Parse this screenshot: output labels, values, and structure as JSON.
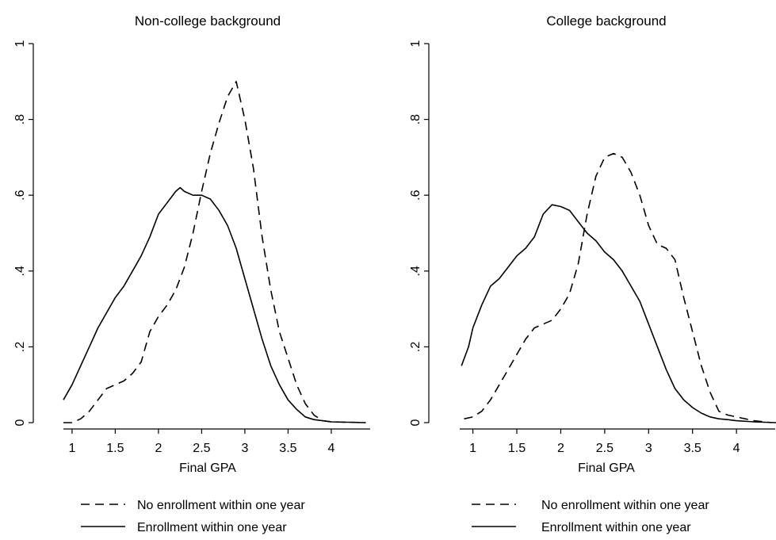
{
  "chart_data": [
    {
      "type": "line",
      "title": "Non-college background",
      "xlabel": "Final GPA",
      "ylabel": "",
      "xlim": [
        0.9,
        4.45
      ],
      "ylim": [
        0,
        1
      ],
      "xticks": [
        "1",
        "1.5",
        "2",
        "2.5",
        "3",
        "3.5",
        "4"
      ],
      "yticks": [
        "0",
        ".2",
        ".4",
        ".6",
        ".8",
        "1"
      ],
      "grid": false,
      "legend": "bottom",
      "series": [
        {
          "name": "No enrollment within one year",
          "style": "dashed",
          "x": [
            0.9,
            1.0,
            1.1,
            1.2,
            1.3,
            1.4,
            1.5,
            1.6,
            1.7,
            1.8,
            1.9,
            2.0,
            2.1,
            2.2,
            2.3,
            2.4,
            2.5,
            2.6,
            2.7,
            2.8,
            2.9,
            3.0,
            3.1,
            3.2,
            3.3,
            3.4,
            3.5,
            3.6,
            3.7,
            3.8,
            3.9,
            4.0,
            4.2,
            4.4
          ],
          "y": [
            0.0,
            0.0,
            0.01,
            0.03,
            0.06,
            0.09,
            0.1,
            0.11,
            0.13,
            0.16,
            0.24,
            0.28,
            0.31,
            0.35,
            0.41,
            0.5,
            0.61,
            0.71,
            0.79,
            0.86,
            0.9,
            0.8,
            0.67,
            0.49,
            0.35,
            0.24,
            0.17,
            0.1,
            0.05,
            0.02,
            0.005,
            0.002,
            0.001,
            0.0
          ]
        },
        {
          "name": "Enrollment within one year",
          "style": "solid",
          "x": [
            0.9,
            1.0,
            1.1,
            1.2,
            1.3,
            1.4,
            1.5,
            1.6,
            1.7,
            1.8,
            1.9,
            2.0,
            2.1,
            2.2,
            2.25,
            2.3,
            2.4,
            2.5,
            2.6,
            2.7,
            2.8,
            2.9,
            3.0,
            3.1,
            3.2,
            3.3,
            3.4,
            3.5,
            3.6,
            3.7,
            3.8,
            3.9,
            4.0,
            4.2,
            4.4
          ],
          "y": [
            0.06,
            0.1,
            0.15,
            0.2,
            0.25,
            0.29,
            0.33,
            0.36,
            0.4,
            0.44,
            0.49,
            0.55,
            0.58,
            0.61,
            0.62,
            0.61,
            0.6,
            0.6,
            0.59,
            0.56,
            0.52,
            0.46,
            0.38,
            0.3,
            0.22,
            0.15,
            0.1,
            0.06,
            0.035,
            0.015,
            0.008,
            0.005,
            0.002,
            0.001,
            0.0
          ]
        }
      ]
    },
    {
      "type": "line",
      "title": "College background",
      "xlabel": "Final GPA",
      "ylabel": "",
      "xlim": [
        0.85,
        4.45
      ],
      "ylim": [
        0,
        1
      ],
      "xticks": [
        "1",
        "1.5",
        "2",
        "2.5",
        "3",
        "3.5",
        "4"
      ],
      "yticks": [
        "0",
        ".2",
        ".4",
        ".6",
        ".8",
        "1"
      ],
      "grid": false,
      "legend": "bottom",
      "series": [
        {
          "name": "No enrollment within one year",
          "style": "dashed",
          "x": [
            0.9,
            1.0,
            1.1,
            1.2,
            1.3,
            1.4,
            1.5,
            1.6,
            1.7,
            1.8,
            1.9,
            2.0,
            2.1,
            2.2,
            2.3,
            2.4,
            2.5,
            2.6,
            2.7,
            2.8,
            2.9,
            3.0,
            3.1,
            3.2,
            3.3,
            3.4,
            3.5,
            3.6,
            3.7,
            3.8,
            3.9,
            4.0,
            4.2,
            4.4
          ],
          "y": [
            0.01,
            0.015,
            0.03,
            0.06,
            0.1,
            0.14,
            0.18,
            0.22,
            0.25,
            0.26,
            0.27,
            0.3,
            0.34,
            0.42,
            0.55,
            0.65,
            0.7,
            0.71,
            0.7,
            0.66,
            0.6,
            0.52,
            0.47,
            0.46,
            0.43,
            0.33,
            0.24,
            0.15,
            0.08,
            0.03,
            0.02,
            0.015,
            0.005,
            0.0
          ]
        },
        {
          "name": "Enrollment within one year",
          "style": "solid",
          "x": [
            0.87,
            0.95,
            1.0,
            1.1,
            1.2,
            1.3,
            1.4,
            1.5,
            1.6,
            1.7,
            1.8,
            1.9,
            2.0,
            2.1,
            2.2,
            2.3,
            2.4,
            2.5,
            2.6,
            2.7,
            2.8,
            2.9,
            3.0,
            3.1,
            3.2,
            3.3,
            3.4,
            3.5,
            3.6,
            3.7,
            3.8,
            3.9,
            4.0,
            4.2,
            4.45
          ],
          "y": [
            0.15,
            0.2,
            0.25,
            0.31,
            0.36,
            0.38,
            0.41,
            0.44,
            0.46,
            0.49,
            0.55,
            0.575,
            0.57,
            0.56,
            0.53,
            0.5,
            0.48,
            0.45,
            0.43,
            0.4,
            0.36,
            0.32,
            0.26,
            0.2,
            0.14,
            0.09,
            0.06,
            0.04,
            0.025,
            0.015,
            0.01,
            0.008,
            0.005,
            0.002,
            0.0
          ]
        }
      ]
    }
  ]
}
